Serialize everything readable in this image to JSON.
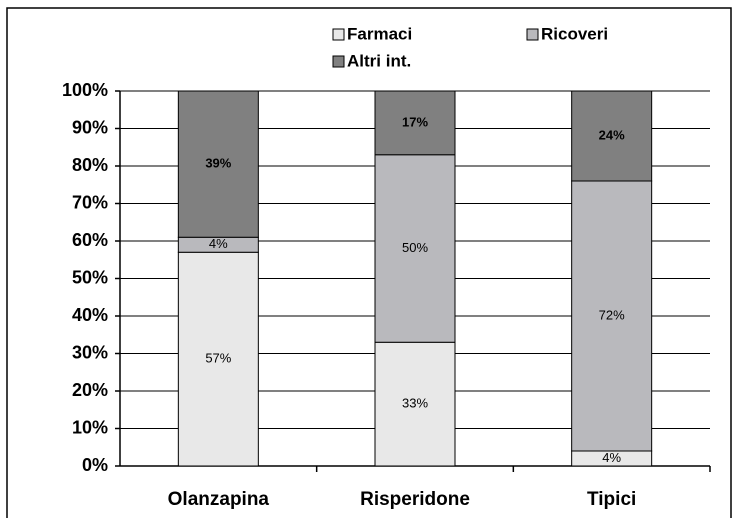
{
  "chart_data": {
    "type": "stacked_bar",
    "categories": [
      "Olanzapina",
      "Risperidone",
      "Tipici"
    ],
    "series": [
      {
        "name": "Farmaci",
        "color": "#e8e8e8",
        "values": [
          57,
          33,
          4
        ],
        "value_labels": [
          "57%",
          "33%",
          "4%"
        ]
      },
      {
        "name": "Ricoveri",
        "color": "#b9b9bd",
        "values": [
          4,
          50,
          72
        ],
        "value_labels": [
          "4%",
          "50%",
          "72%"
        ]
      },
      {
        "name": "Altri int.",
        "color": "#808080",
        "values": [
          39,
          17,
          24
        ],
        "value_labels": [
          "39%",
          "17%",
          "24%"
        ]
      }
    ],
    "ylim": [
      0,
      100
    ],
    "yticks": [
      {
        "value": 0,
        "label": "0%"
      },
      {
        "value": 10,
        "label": "10%"
      },
      {
        "value": 20,
        "label": "20%"
      },
      {
        "value": 30,
        "label": "30%"
      },
      {
        "value": 40,
        "label": "40%"
      },
      {
        "value": 50,
        "label": "50%"
      },
      {
        "value": 60,
        "label": "60%"
      },
      {
        "value": 70,
        "label": "70%"
      },
      {
        "value": 80,
        "label": "80%"
      },
      {
        "value": 90,
        "label": "90%"
      },
      {
        "value": 100,
        "label": "100%"
      }
    ],
    "grid": true,
    "legend": "top"
  }
}
